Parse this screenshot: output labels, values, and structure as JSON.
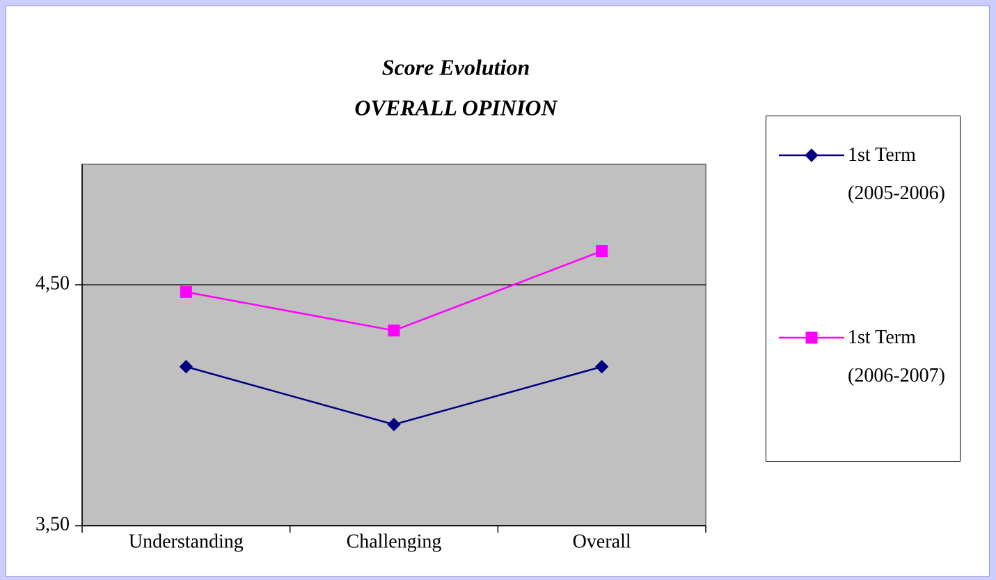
{
  "chart_data": {
    "type": "line",
    "title": "Score Evolution",
    "subtitle": "OVERALL OPINION",
    "categories": [
      "Understanding",
      "Challenging",
      "Overall"
    ],
    "series": [
      {
        "name": "1st Term (2005-2006)",
        "color": "#000080",
        "marker": "diamond",
        "values": [
          4.16,
          3.92,
          4.16
        ]
      },
      {
        "name": "1st Term (2006-2007)",
        "color": "#ff00ff",
        "marker": "square",
        "values": [
          4.47,
          4.31,
          4.64
        ]
      }
    ],
    "ylim": [
      3.5,
      5.0
    ],
    "yticks": [
      {
        "value": 3.5,
        "label": "3,50"
      },
      {
        "value": 4.5,
        "label": "4,50"
      }
    ],
    "grid": true,
    "legend": "right"
  }
}
